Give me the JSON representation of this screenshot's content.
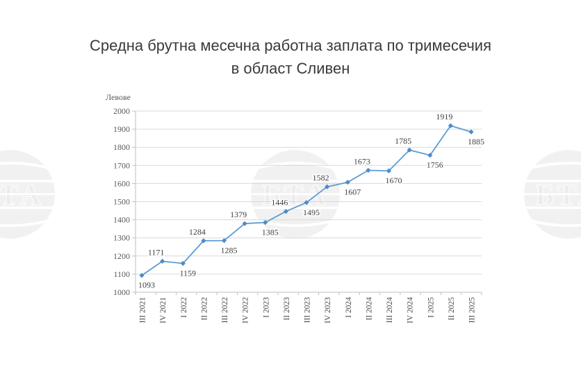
{
  "header": {
    "title_line1": "Средна брутна месечна работна заплата по тримесечия",
    "title_line2": "в област Сливен"
  },
  "watermark": {
    "text": "БТА"
  },
  "chart_data": {
    "type": "line",
    "title": "Средна брутна месечна работна заплата по тримесечия в област Сливен",
    "ylabel": "Левове",
    "xlabel": "",
    "categories": [
      "III 2021",
      "IV 2021",
      "I 2022",
      "II 2022",
      "III 2022",
      "IV 2022",
      "I 2023",
      "II 2023",
      "III 2023",
      "IV 2023",
      "I 2024",
      "II 2024",
      "III 2024",
      "IV 2024",
      "I 2025",
      "II 2025",
      "III 2025"
    ],
    "values": [
      1093,
      1171,
      1159,
      1284,
      1285,
      1379,
      1385,
      1446,
      1495,
      1582,
      1607,
      1673,
      1670,
      1785,
      1756,
      1919,
      1885
    ],
    "ylim": [
      1000,
      2000
    ],
    "ytick_step": 100,
    "grid": true,
    "legend": false,
    "data_labels": true,
    "data_label_position": "alternating below/above starting below",
    "line_color": "#5b9bd5",
    "marker_color": "#4f8ac9",
    "gridline_color": "#d9d9d9",
    "axis_color": "#bfbfbf",
    "data_label_color": "#404040",
    "tick_label_color": "#595959",
    "x_tick_label_color": "#4a4a4a"
  }
}
